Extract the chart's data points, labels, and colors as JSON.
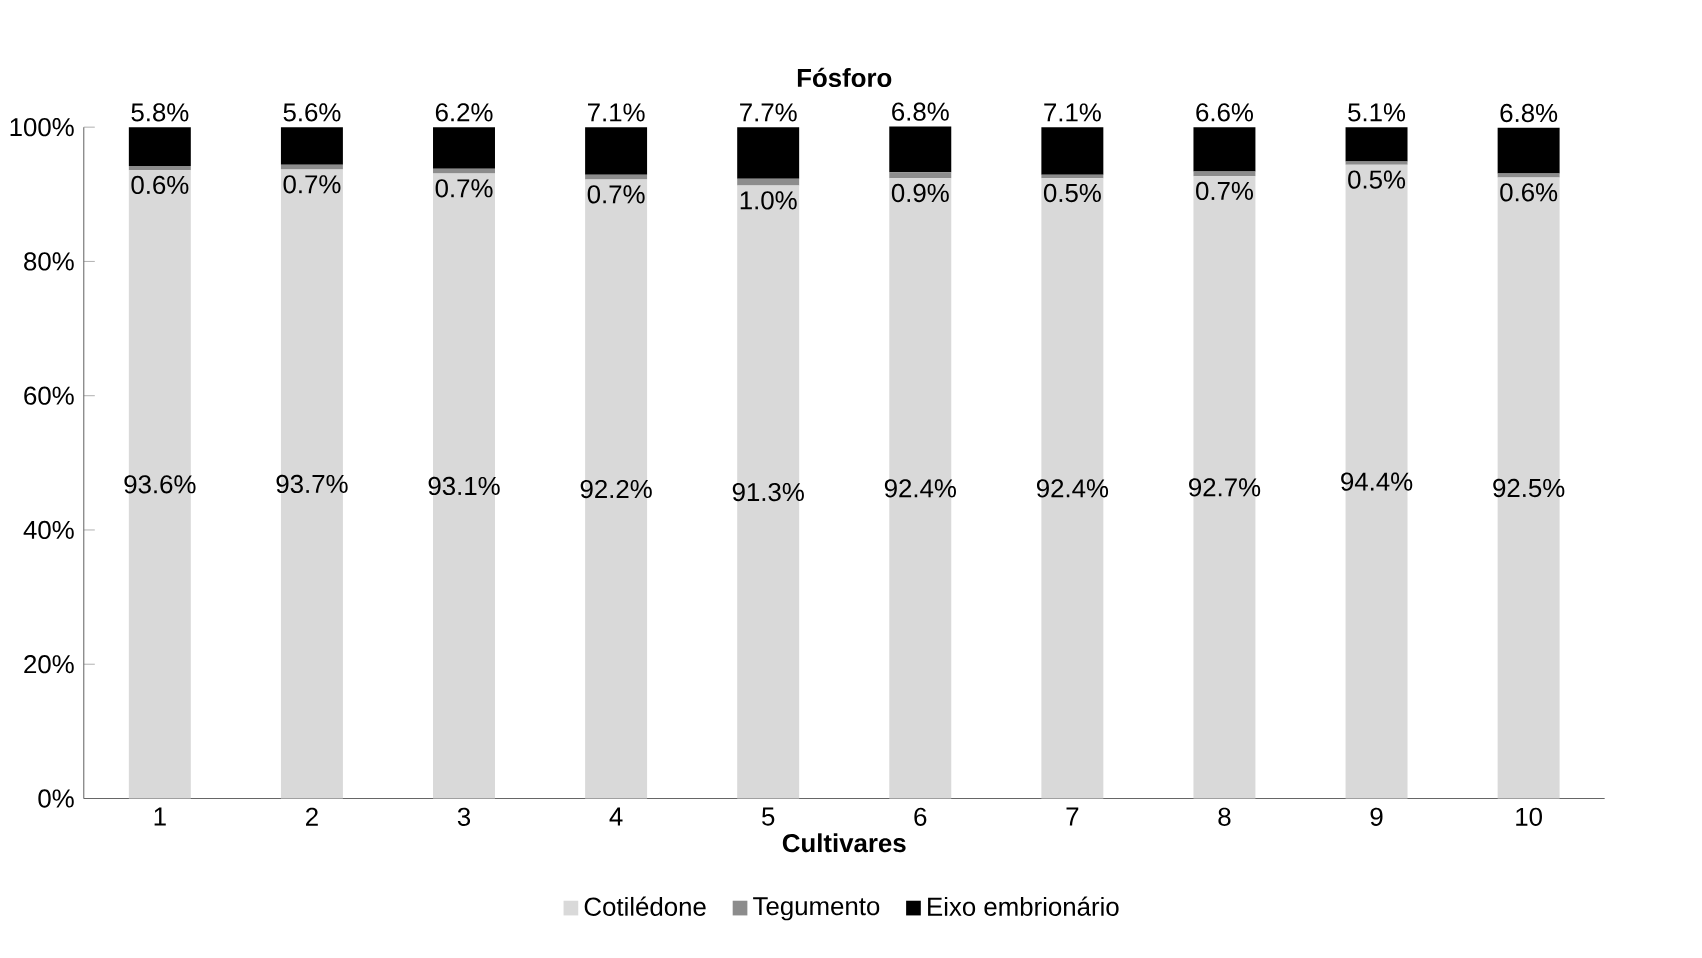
{
  "chart_data": {
    "type": "bar",
    "title": "Fósforo",
    "xlabel": "Cultivares",
    "stacked": true,
    "legend": "bottom",
    "categories": [
      "1",
      "2",
      "3",
      "4",
      "5",
      "6",
      "7",
      "8",
      "9",
      "10"
    ],
    "ylim": [
      0,
      100
    ],
    "yticks": [
      {
        "value": 0,
        "label": "0%"
      },
      {
        "value": 20,
        "label": "20%"
      },
      {
        "value": 40,
        "label": "40%"
      },
      {
        "value": 60,
        "label": "60%"
      },
      {
        "value": 80,
        "label": "80%"
      },
      {
        "value": 100,
        "label": "100%"
      }
    ],
    "series": [
      {
        "name": "Cotilédone",
        "color": "#d9d9d9",
        "values": [
          93.6,
          93.7,
          93.1,
          92.2,
          91.3,
          92.4,
          92.4,
          92.7,
          94.4,
          92.5
        ],
        "value_labels": [
          "93.6%",
          "93.7%",
          "93.1%",
          "92.2%",
          "91.3%",
          "92.4%",
          "92.4%",
          "92.7%",
          "94.4%",
          "92.5%"
        ]
      },
      {
        "name": "Tegumento",
        "color": "#8c8c8c",
        "values": [
          0.6,
          0.7,
          0.7,
          0.7,
          1.0,
          0.9,
          0.5,
          0.7,
          0.5,
          0.6
        ],
        "value_labels": [
          "0.6%",
          "0.7%",
          "0.7%",
          "0.7%",
          "1.0%",
          "0.9%",
          "0.5%",
          "0.7%",
          "0.5%",
          "0.6%"
        ]
      },
      {
        "name": "Eixo embrionário",
        "color": "#000000",
        "values": [
          5.8,
          5.6,
          6.2,
          7.1,
          7.7,
          6.8,
          7.1,
          6.6,
          5.1,
          6.8
        ],
        "value_labels": [
          "5.8%",
          "5.6%",
          "6.2%",
          "7.1%",
          "7.7%",
          "6.8%",
          "7.1%",
          "6.6%",
          "5.1%",
          "6.8%"
        ]
      }
    ]
  }
}
